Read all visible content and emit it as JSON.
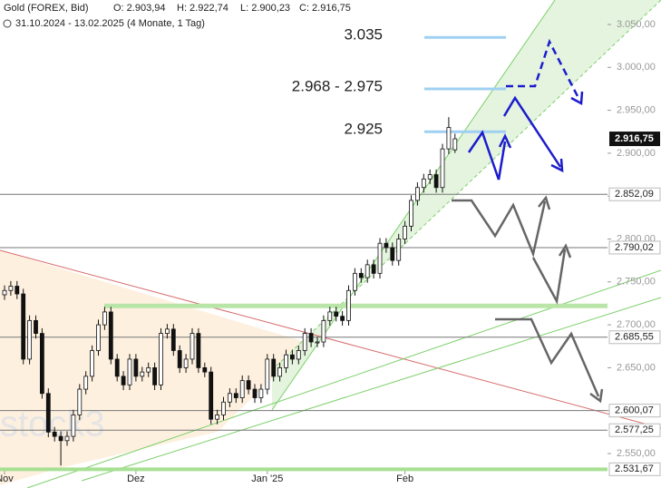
{
  "header": {
    "title": "Gold (FOREX, Bid)",
    "ohlc": [
      "O: 2.903,94",
      "H: 2.922,74",
      "L: 2.900,23",
      "C: 2.916,75"
    ],
    "range": "31.10.2024 - 13.02.2025 (4 Monate, 1 Tag)"
  },
  "watermark": "stock3",
  "chart_data": {
    "type": "candlestick",
    "open": [
      2735,
      2740,
      2745,
      2736,
      2660,
      2705,
      2690,
      2620,
      2575,
      2570,
      2565,
      2570,
      2595,
      2625,
      2640,
      2670,
      2700,
      2715,
      2660,
      2640,
      2630,
      2660,
      2640,
      2645,
      2650,
      2630,
      2690,
      2695,
      2670,
      2650,
      2660,
      2690,
      2650,
      2645,
      2590,
      2595,
      2610,
      2620,
      2615,
      2635,
      2625,
      2615,
      2625,
      2660,
      2640,
      2650,
      2665,
      2660,
      2670,
      2690,
      2680,
      2680,
      2705,
      2715,
      2710,
      2705,
      2740,
      2760,
      2755,
      2770,
      2760,
      2795,
      2790,
      2775,
      2800,
      2815,
      2845,
      2860,
      2870,
      2875,
      2860,
      2905,
      2903.94
    ],
    "high": [
      2746,
      2751,
      2751,
      2742,
      2711,
      2711,
      2696,
      2626,
      2581,
      2576,
      2576,
      2601,
      2631,
      2646,
      2676,
      2706,
      2721,
      2721,
      2666,
      2646,
      2666,
      2666,
      2651,
      2656,
      2656,
      2696,
      2701,
      2701,
      2676,
      2666,
      2696,
      2696,
      2656,
      2651,
      2601,
      2616,
      2626,
      2626,
      2641,
      2641,
      2631,
      2631,
      2666,
      2666,
      2656,
      2671,
      2671,
      2676,
      2696,
      2696,
      2686,
      2711,
      2721,
      2721,
      2716,
      2746,
      2766,
      2766,
      2776,
      2776,
      2801,
      2801,
      2796,
      2806,
      2821,
      2851,
      2866,
      2876,
      2881,
      2881,
      2911,
      2942,
      2922.74
    ],
    "low": [
      2729,
      2734,
      2730,
      2654,
      2654,
      2684,
      2614,
      2569,
      2564,
      2536,
      2559,
      2564,
      2589,
      2619,
      2634,
      2664,
      2694,
      2654,
      2634,
      2624,
      2624,
      2634,
      2634,
      2639,
      2624,
      2624,
      2684,
      2664,
      2644,
      2644,
      2654,
      2644,
      2639,
      2584,
      2584,
      2589,
      2604,
      2609,
      2609,
      2619,
      2609,
      2609,
      2619,
      2634,
      2634,
      2644,
      2654,
      2654,
      2664,
      2674,
      2674,
      2674,
      2699,
      2704,
      2699,
      2699,
      2734,
      2749,
      2749,
      2754,
      2754,
      2784,
      2769,
      2769,
      2794,
      2809,
      2839,
      2854,
      2864,
      2854,
      2854,
      2899,
      2900.23
    ],
    "close": [
      2740,
      2745,
      2736,
      2660,
      2705,
      2690,
      2620,
      2575,
      2570,
      2565,
      2570,
      2595,
      2625,
      2640,
      2670,
      2700,
      2715,
      2660,
      2640,
      2630,
      2660,
      2640,
      2645,
      2650,
      2630,
      2690,
      2695,
      2670,
      2650,
      2660,
      2690,
      2650,
      2645,
      2590,
      2595,
      2610,
      2620,
      2615,
      2635,
      2625,
      2615,
      2625,
      2660,
      2640,
      2650,
      2665,
      2660,
      2670,
      2690,
      2680,
      2680,
      2705,
      2715,
      2710,
      2705,
      2740,
      2760,
      2755,
      2770,
      2760,
      2795,
      2790,
      2775,
      2800,
      2815,
      2845,
      2860,
      2870,
      2875,
      2860,
      2905,
      2930,
      2916.75
    ],
    "xticks": [
      {
        "value": 0,
        "label": "Nov"
      },
      {
        "value": 21,
        "label": "Dez"
      },
      {
        "value": 42,
        "label": "Jan '25"
      },
      {
        "value": 64,
        "label": "Feb"
      }
    ],
    "ylim": [
      2530,
      3070
    ],
    "yticks": [
      {
        "value": 2550,
        "label": "2.550,00"
      },
      {
        "value": 2600,
        "label": "2.600,00"
      },
      {
        "value": 2650,
        "label": "2.650,00"
      },
      {
        "value": 2700,
        "label": "2.700,00"
      },
      {
        "value": 2750,
        "label": "2.750,00"
      },
      {
        "value": 2800,
        "label": "2.800,00"
      },
      {
        "value": 2850,
        "label": "2.850,00"
      },
      {
        "value": 2900,
        "label": "2.900,00"
      },
      {
        "value": 2950,
        "label": "2.950,00"
      },
      {
        "value": 3000,
        "label": "3.000,00"
      },
      {
        "value": 3050,
        "label": "3.050,00"
      }
    ],
    "levels": [
      {
        "value": 2852.09,
        "label": "2.852,09"
      },
      {
        "value": 2790.02,
        "label": "2.790,02"
      },
      {
        "value": 2685.55,
        "label": "2.685,55"
      },
      {
        "value": 2600.07,
        "label": "2.600,07"
      },
      {
        "value": 2577.25,
        "label": "2.577,25"
      },
      {
        "value": 2531.67,
        "label": "2.531,67"
      }
    ],
    "last": {
      "value": 2916.75,
      "label": "2.916,75"
    },
    "targets": [
      {
        "value": 3035,
        "label": "3.035"
      },
      {
        "value": 2975,
        "label": "2.968 - 2.975"
      },
      {
        "value": 2925,
        "label": "2.925"
      }
    ],
    "support": 2722
  }
}
